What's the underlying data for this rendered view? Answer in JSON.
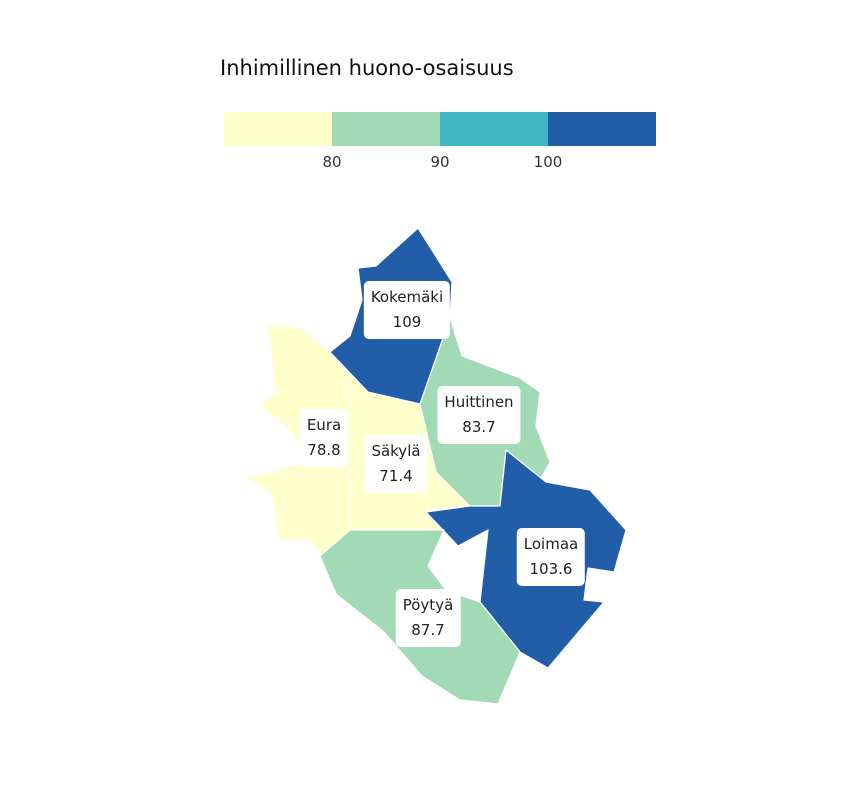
{
  "legend": {
    "title": "Inhimillinen huono-osaisuus",
    "colors": [
      "#ffffcc",
      "#a1dab4",
      "#41b6c4",
      "#225ea8"
    ],
    "breaks": [
      "80",
      "90",
      "100"
    ]
  },
  "regions": [
    {
      "name": "Kokemäki",
      "value": "109",
      "color": "#225ea8"
    },
    {
      "name": "Huittinen",
      "value": "83.7",
      "color": "#a1dab4"
    },
    {
      "name": "Eura",
      "value": "78.8",
      "color": "#ffffcc"
    },
    {
      "name": "Säkylä",
      "value": "71.4",
      "color": "#ffffcc"
    },
    {
      "name": "Loimaa",
      "value": "103.6",
      "color": "#225ea8"
    },
    {
      "name": "Pöytyä",
      "value": "87.7",
      "color": "#a1dab4"
    }
  ]
}
